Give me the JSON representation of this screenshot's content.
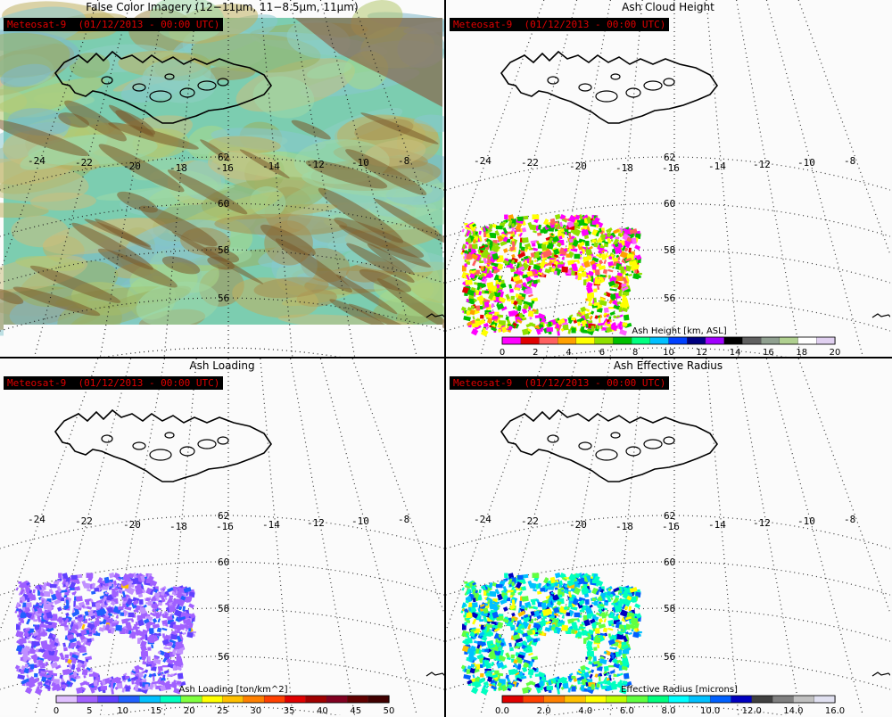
{
  "panels": [
    {
      "title": "False Color Imagery (12−11µm, 11−8.5µm, 11µm)",
      "satellite_label": "Meteosat-9  (01/12/2013 - 00:00 UTC)",
      "type": "false-color"
    },
    {
      "title": "Ash Cloud Height",
      "satellite_label": "Meteosat-9  (01/12/2013 - 00:00 UTC)",
      "type": "height",
      "colorbar": {
        "title": "Ash Height [km, ASL]",
        "ticks": [
          "0",
          "2",
          "4",
          "6",
          "8",
          "10",
          "12",
          "14",
          "16",
          "18",
          "20"
        ],
        "colors": [
          "#ff00ff",
          "#e00000",
          "#ff6060",
          "#ffa000",
          "#ffff00",
          "#90e000",
          "#00c000",
          "#00ff80",
          "#00c0ff",
          "#0040ff",
          "#000080",
          "#a000ff",
          "#000000",
          "#606060",
          "#90a090",
          "#b0d090",
          "#ffffff",
          "#e0d0f0"
        ]
      }
    },
    {
      "title": "Ash Loading",
      "satellite_label": "Meteosat-9  (01/12/2013 - 00:00 UTC)",
      "type": "loading",
      "colorbar": {
        "title": "Ash Loading [ton/km^2]",
        "ticks": [
          "0",
          "5",
          "10",
          "15",
          "20",
          "25",
          "30",
          "35",
          "40",
          "45",
          "50"
        ],
        "colors": [
          "#e0c0ff",
          "#a060ff",
          "#6040ff",
          "#2060ff",
          "#00c0ff",
          "#00ffc0",
          "#80ff40",
          "#ffff00",
          "#ffc000",
          "#ff8000",
          "#ff4000",
          "#e00000",
          "#a00000",
          "#800020",
          "#600000",
          "#400000"
        ]
      }
    },
    {
      "title": "Ash Effective Radius",
      "satellite_label": "Meteosat-9  (01/12/2013 - 00:00 UTC)",
      "type": "radius",
      "colorbar": {
        "title": "Effective Radius [microns]",
        "ticks": [
          "0.0",
          "2.0",
          "4.0",
          "6.0",
          "8.0",
          "10.0",
          "12.0",
          "14.0",
          "16.0"
        ],
        "colors": [
          "#e00000",
          "#ff4000",
          "#ff8000",
          "#ffc000",
          "#ffff00",
          "#c0ff00",
          "#60ff40",
          "#00ff80",
          "#00ffff",
          "#00c0ff",
          "#0060ff",
          "#0000c0",
          "#404040",
          "#808080",
          "#c0c0c0",
          "#e0e0f0"
        ]
      }
    }
  ],
  "grid": {
    "lon_labels": [
      "-24",
      "-22",
      "-20",
      "-18",
      "-16",
      "-14",
      "-12",
      "-10",
      "-8"
    ],
    "lat_labels": [
      "62",
      "60",
      "58",
      "56"
    ]
  },
  "colors": {
    "satellite_label_text": "#e00000",
    "satellite_label_bg": "#000000"
  }
}
